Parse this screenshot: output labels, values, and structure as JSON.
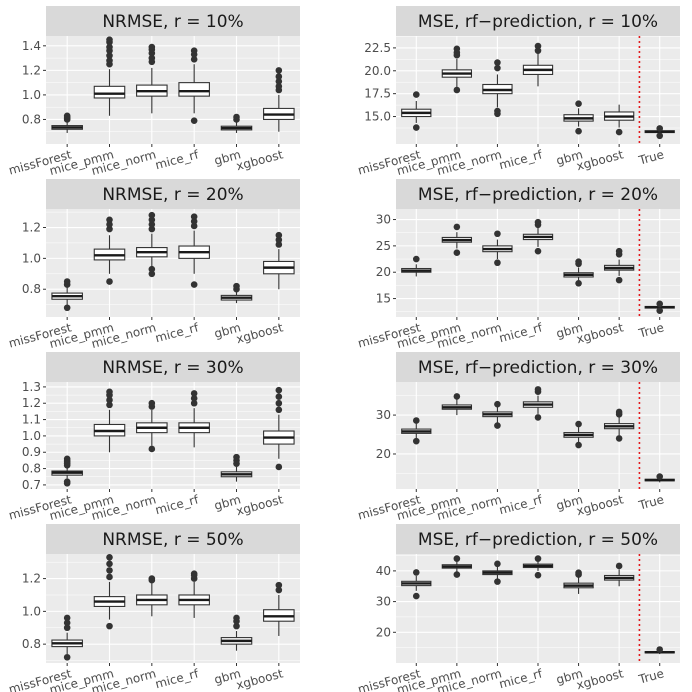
{
  "chart_data": [
    {
      "type": "boxplot",
      "title": "NRMSE, r = 10%",
      "categories": [
        "missForest",
        "mice_pmm",
        "mice_norm",
        "mice_rf",
        "gbm",
        "xgboost"
      ],
      "ylim": [
        0.6,
        1.48
      ],
      "yticks": [
        0.8,
        1.0,
        1.2,
        1.4
      ],
      "ytick_labels": [
        "0.8",
        "1.0",
        "1.2",
        "1.4"
      ],
      "grid": true,
      "boxes": [
        {
          "min": 0.69,
          "q1": 0.72,
          "median": 0.735,
          "q3": 0.75,
          "max": 0.79,
          "outliers": [
            0.8,
            0.81,
            0.82,
            0.83
          ]
        },
        {
          "min": 0.83,
          "q1": 0.975,
          "median": 1.01,
          "q3": 1.07,
          "max": 1.21,
          "outliers": [
            1.25,
            1.28,
            1.32,
            1.36,
            1.39,
            1.43,
            1.45
          ]
        },
        {
          "min": 0.85,
          "q1": 0.99,
          "median": 1.03,
          "q3": 1.08,
          "max": 1.22,
          "outliers": [
            1.27,
            1.3,
            1.34,
            1.37,
            1.39
          ]
        },
        {
          "min": 0.85,
          "q1": 0.99,
          "median": 1.03,
          "q3": 1.1,
          "max": 1.25,
          "outliers": [
            0.79,
            1.29,
            1.33,
            1.36
          ]
        },
        {
          "min": 0.69,
          "q1": 0.715,
          "median": 0.73,
          "q3": 0.745,
          "max": 0.78,
          "outliers": [
            0.8,
            0.82
          ]
        },
        {
          "min": 0.7,
          "q1": 0.8,
          "median": 0.84,
          "q3": 0.89,
          "max": 1.0,
          "outliers": [
            1.04,
            1.07,
            1.11,
            1.15,
            1.2
          ]
        }
      ]
    },
    {
      "type": "boxplot",
      "title": "MSE, rf−prediction, r = 10%",
      "categories": [
        "missForest",
        "mice_pmm",
        "mice_norm",
        "mice_rf",
        "gbm",
        "xgboost",
        "True"
      ],
      "ylim": [
        12.0,
        23.8
      ],
      "yticks": [
        15.0,
        17.5,
        20.0,
        22.5
      ],
      "ytick_labels": [
        "15.0",
        "17.5",
        "20.0",
        "22.5"
      ],
      "grid": true,
      "vline_between": [
        "xgboost",
        "True"
      ],
      "boxes": [
        {
          "min": 14.3,
          "q1": 15.0,
          "median": 15.4,
          "q3": 15.8,
          "max": 16.7,
          "outliers": [
            13.8,
            17.4
          ]
        },
        {
          "min": 18.2,
          "q1": 19.3,
          "median": 19.7,
          "q3": 20.1,
          "max": 21.3,
          "outliers": [
            17.9,
            21.7,
            22.0,
            22.4
          ]
        },
        {
          "min": 16.0,
          "q1": 17.5,
          "median": 17.9,
          "q3": 18.5,
          "max": 19.6,
          "outliers": [
            15.3,
            15.6,
            20.3,
            20.9
          ]
        },
        {
          "min": 18.3,
          "q1": 19.6,
          "median": 20.1,
          "q3": 20.6,
          "max": 21.9,
          "outliers": [
            22.2,
            22.7
          ]
        },
        {
          "min": 13.9,
          "q1": 14.5,
          "median": 14.8,
          "q3": 15.2,
          "max": 15.9,
          "outliers": [
            16.4,
            13.4
          ]
        },
        {
          "min": 13.8,
          "q1": 14.6,
          "median": 15.0,
          "q3": 15.5,
          "max": 16.3,
          "outliers": [
            13.3
          ]
        },
        {
          "min": 13.0,
          "q1": 13.25,
          "median": 13.35,
          "q3": 13.45,
          "max": 13.6,
          "outliers": [
            13.7,
            12.9
          ]
        }
      ]
    },
    {
      "type": "boxplot",
      "title": "NRMSE, r = 20%",
      "categories": [
        "missForest",
        "mice_pmm",
        "mice_norm",
        "mice_rf",
        "gbm",
        "xgboost"
      ],
      "ylim": [
        0.62,
        1.32
      ],
      "yticks": [
        0.8,
        1.0,
        1.2
      ],
      "ytick_labels": [
        "0.8",
        "1.0",
        "1.2"
      ],
      "grid": true,
      "boxes": [
        {
          "min": 0.7,
          "q1": 0.735,
          "median": 0.755,
          "q3": 0.775,
          "max": 0.82,
          "outliers": [
            0.68,
            0.83,
            0.85
          ]
        },
        {
          "min": 0.9,
          "q1": 0.99,
          "median": 1.02,
          "q3": 1.06,
          "max": 1.15,
          "outliers": [
            0.85,
            1.19,
            1.22,
            1.25
          ]
        },
        {
          "min": 0.92,
          "q1": 1.01,
          "median": 1.04,
          "q3": 1.07,
          "max": 1.16,
          "outliers": [
            0.9,
            0.93,
            1.19,
            1.22,
            1.25,
            1.28
          ]
        },
        {
          "min": 0.9,
          "q1": 1.0,
          "median": 1.04,
          "q3": 1.08,
          "max": 1.18,
          "outliers": [
            0.83,
            1.21,
            1.24,
            1.27
          ]
        },
        {
          "min": 0.71,
          "q1": 0.73,
          "median": 0.745,
          "q3": 0.76,
          "max": 0.79,
          "outliers": [
            0.8,
            0.82
          ]
        },
        {
          "min": 0.8,
          "q1": 0.9,
          "median": 0.94,
          "q3": 0.98,
          "max": 1.06,
          "outliers": [
            1.09,
            1.12,
            1.15
          ]
        }
      ]
    },
    {
      "type": "boxplot",
      "title": "MSE, rf−prediction, r = 20%",
      "categories": [
        "missForest",
        "mice_pmm",
        "mice_norm",
        "mice_rf",
        "gbm",
        "xgboost",
        "True"
      ],
      "ylim": [
        11.5,
        32.0
      ],
      "yticks": [
        15,
        20,
        25,
        30
      ],
      "ytick_labels": [
        "15",
        "20",
        "25",
        "30"
      ],
      "grid": true,
      "vline_between": [
        "xgboost",
        "True"
      ],
      "boxes": [
        {
          "min": 19.2,
          "q1": 20.0,
          "median": 20.3,
          "q3": 20.7,
          "max": 21.5,
          "outliers": [
            22.5
          ]
        },
        {
          "min": 24.5,
          "q1": 25.7,
          "median": 26.1,
          "q3": 26.6,
          "max": 27.6,
          "outliers": [
            23.7,
            28.6
          ]
        },
        {
          "min": 22.5,
          "q1": 23.9,
          "median": 24.4,
          "q3": 25.0,
          "max": 26.2,
          "outliers": [
            21.8,
            27.3
          ]
        },
        {
          "min": 24.8,
          "q1": 26.2,
          "median": 26.7,
          "q3": 27.2,
          "max": 28.4,
          "outliers": [
            24.0,
            29.0,
            29.5
          ]
        },
        {
          "min": 18.3,
          "q1": 19.1,
          "median": 19.5,
          "q3": 19.9,
          "max": 20.9,
          "outliers": [
            17.9,
            21.6,
            22.0
          ]
        },
        {
          "min": 19.3,
          "q1": 20.4,
          "median": 20.8,
          "q3": 21.3,
          "max": 22.4,
          "outliers": [
            18.5,
            23.4,
            24.0
          ]
        },
        {
          "min": 12.9,
          "q1": 13.2,
          "median": 13.35,
          "q3": 13.5,
          "max": 13.8,
          "outliers": [
            14.0,
            12.7
          ]
        }
      ]
    },
    {
      "type": "boxplot",
      "title": "NRMSE, r = 30%",
      "categories": [
        "missForest",
        "mice_pmm",
        "mice_norm",
        "mice_rf",
        "gbm",
        "xgboost"
      ],
      "ylim": [
        0.675,
        1.33
      ],
      "yticks": [
        0.7,
        0.8,
        0.9,
        1.0,
        1.1,
        1.2,
        1.3
      ],
      "ytick_labels": [
        "0.7",
        "0.8",
        "0.9",
        "1.0",
        "1.1",
        "1.2",
        "1.3"
      ],
      "grid": true,
      "boxes": [
        {
          "min": 0.74,
          "q1": 0.76,
          "median": 0.775,
          "q3": 0.785,
          "max": 0.81,
          "outliers": [
            0.71,
            0.72,
            0.82,
            0.83,
            0.84,
            0.85,
            0.86
          ]
        },
        {
          "min": 0.9,
          "q1": 1.0,
          "median": 1.03,
          "q3": 1.07,
          "max": 1.16,
          "outliers": [
            1.19,
            1.22,
            1.25,
            1.27
          ]
        },
        {
          "min": 0.94,
          "q1": 1.02,
          "median": 1.05,
          "q3": 1.08,
          "max": 1.16,
          "outliers": [
            0.92,
            1.18,
            1.2
          ]
        },
        {
          "min": 0.93,
          "q1": 1.02,
          "median": 1.05,
          "q3": 1.08,
          "max": 1.17,
          "outliers": [
            1.2,
            1.23,
            1.26
          ]
        },
        {
          "min": 0.72,
          "q1": 0.75,
          "median": 0.765,
          "q3": 0.78,
          "max": 0.81,
          "outliers": [
            0.83,
            0.85,
            0.87
          ]
        },
        {
          "min": 0.86,
          "q1": 0.95,
          "median": 0.99,
          "q3": 1.03,
          "max": 1.13,
          "outliers": [
            0.81,
            1.16,
            1.2,
            1.24,
            1.28
          ]
        }
      ]
    },
    {
      "type": "boxplot",
      "title": "MSE, rf−prediction, r = 30%",
      "categories": [
        "missForest",
        "mice_pmm",
        "mice_norm",
        "mice_rf",
        "gbm",
        "xgboost",
        "True"
      ],
      "ylim": [
        11.0,
        38.5
      ],
      "yticks": [
        20,
        30
      ],
      "ytick_labels": [
        "20",
        "30"
      ],
      "grid": true,
      "vline_between": [
        "xgboost",
        "True"
      ],
      "boxes": [
        {
          "min": 24.0,
          "q1": 25.3,
          "median": 25.8,
          "q3": 26.4,
          "max": 27.8,
          "outliers": [
            23.3,
            28.6
          ]
        },
        {
          "min": 30.0,
          "q1": 31.5,
          "median": 32.0,
          "q3": 32.6,
          "max": 34.0,
          "outliers": [
            34.8
          ]
        },
        {
          "min": 28.0,
          "q1": 29.6,
          "median": 30.2,
          "q3": 30.8,
          "max": 32.2,
          "outliers": [
            27.3,
            32.8
          ]
        },
        {
          "min": 30.3,
          "q1": 32.0,
          "median": 32.7,
          "q3": 33.4,
          "max": 35.0,
          "outliers": [
            29.4,
            36.0,
            36.6
          ]
        },
        {
          "min": 23.0,
          "q1": 24.3,
          "median": 24.9,
          "q3": 25.5,
          "max": 26.9,
          "outliers": [
            22.3,
            27.7
          ]
        },
        {
          "min": 24.8,
          "q1": 26.5,
          "median": 27.1,
          "q3": 27.8,
          "max": 29.4,
          "outliers": [
            24.0,
            30.2,
            30.8
          ]
        },
        {
          "min": 12.7,
          "q1": 13.1,
          "median": 13.3,
          "q3": 13.5,
          "max": 13.9,
          "outliers": [
            14.2
          ]
        }
      ]
    },
    {
      "type": "boxplot",
      "title": "NRMSE, r = 50%",
      "categories": [
        "missForest",
        "mice_pmm",
        "mice_norm",
        "mice_rf",
        "gbm",
        "xgboost"
      ],
      "ylim": [
        0.685,
        1.35
      ],
      "yticks": [
        0.8,
        1.0,
        1.2
      ],
      "ytick_labels": [
        "0.8",
        "1.0",
        "1.2"
      ],
      "grid": true,
      "boxes": [
        {
          "min": 0.74,
          "q1": 0.785,
          "median": 0.805,
          "q3": 0.825,
          "max": 0.87,
          "outliers": [
            0.72,
            0.9,
            0.93,
            0.96
          ]
        },
        {
          "min": 0.95,
          "q1": 1.03,
          "median": 1.06,
          "q3": 1.09,
          "max": 1.18,
          "outliers": [
            0.91,
            1.21,
            1.25,
            1.29,
            1.33
          ]
        },
        {
          "min": 0.97,
          "q1": 1.04,
          "median": 1.07,
          "q3": 1.1,
          "max": 1.17,
          "outliers": [
            1.19,
            1.2
          ]
        },
        {
          "min": 0.96,
          "q1": 1.04,
          "median": 1.07,
          "q3": 1.1,
          "max": 1.18,
          "outliers": [
            1.2,
            1.22,
            1.23
          ]
        },
        {
          "min": 0.76,
          "q1": 0.8,
          "median": 0.82,
          "q3": 0.84,
          "max": 0.88,
          "outliers": [
            0.91,
            0.94,
            0.96
          ]
        },
        {
          "min": 0.85,
          "q1": 0.94,
          "median": 0.97,
          "q3": 1.01,
          "max": 1.1,
          "outliers": [
            1.13,
            1.16
          ]
        }
      ]
    },
    {
      "type": "boxplot",
      "title": "MSE, rf−prediction, r = 50%",
      "categories": [
        "missForest",
        "mice_pmm",
        "mice_norm",
        "mice_rf",
        "gbm",
        "xgboost",
        "True"
      ],
      "ylim": [
        10.0,
        45.5
      ],
      "yticks": [
        20,
        30,
        40
      ],
      "ytick_labels": [
        "20",
        "30",
        "40"
      ],
      "grid": true,
      "vline_between": [
        "xgboost",
        "True"
      ],
      "boxes": [
        {
          "min": 33.5,
          "q1": 35.2,
          "median": 35.9,
          "q3": 36.6,
          "max": 38.4,
          "outliers": [
            31.8,
            39.5
          ]
        },
        {
          "min": 39.7,
          "q1": 40.9,
          "median": 41.4,
          "q3": 42.0,
          "max": 43.3,
          "outliers": [
            38.8,
            44.0
          ]
        },
        {
          "min": 37.5,
          "q1": 38.8,
          "median": 39.4,
          "q3": 40.0,
          "max": 41.5,
          "outliers": [
            36.5,
            42.3
          ]
        },
        {
          "min": 40.0,
          "q1": 41.1,
          "median": 41.6,
          "q3": 42.2,
          "max": 43.3,
          "outliers": [
            38.6,
            44.0
          ]
        },
        {
          "min": 32.5,
          "q1": 34.5,
          "median": 35.2,
          "q3": 36.0,
          "max": 38.0,
          "outliers": [
            38.8,
            39.4
          ]
        },
        {
          "min": 35.0,
          "q1": 37.0,
          "median": 37.7,
          "q3": 38.5,
          "max": 40.5,
          "outliers": [
            41.6
          ]
        },
        {
          "min": 12.9,
          "q1": 13.3,
          "median": 13.5,
          "q3": 13.7,
          "max": 14.1,
          "outliers": [
            14.4
          ]
        }
      ]
    }
  ]
}
